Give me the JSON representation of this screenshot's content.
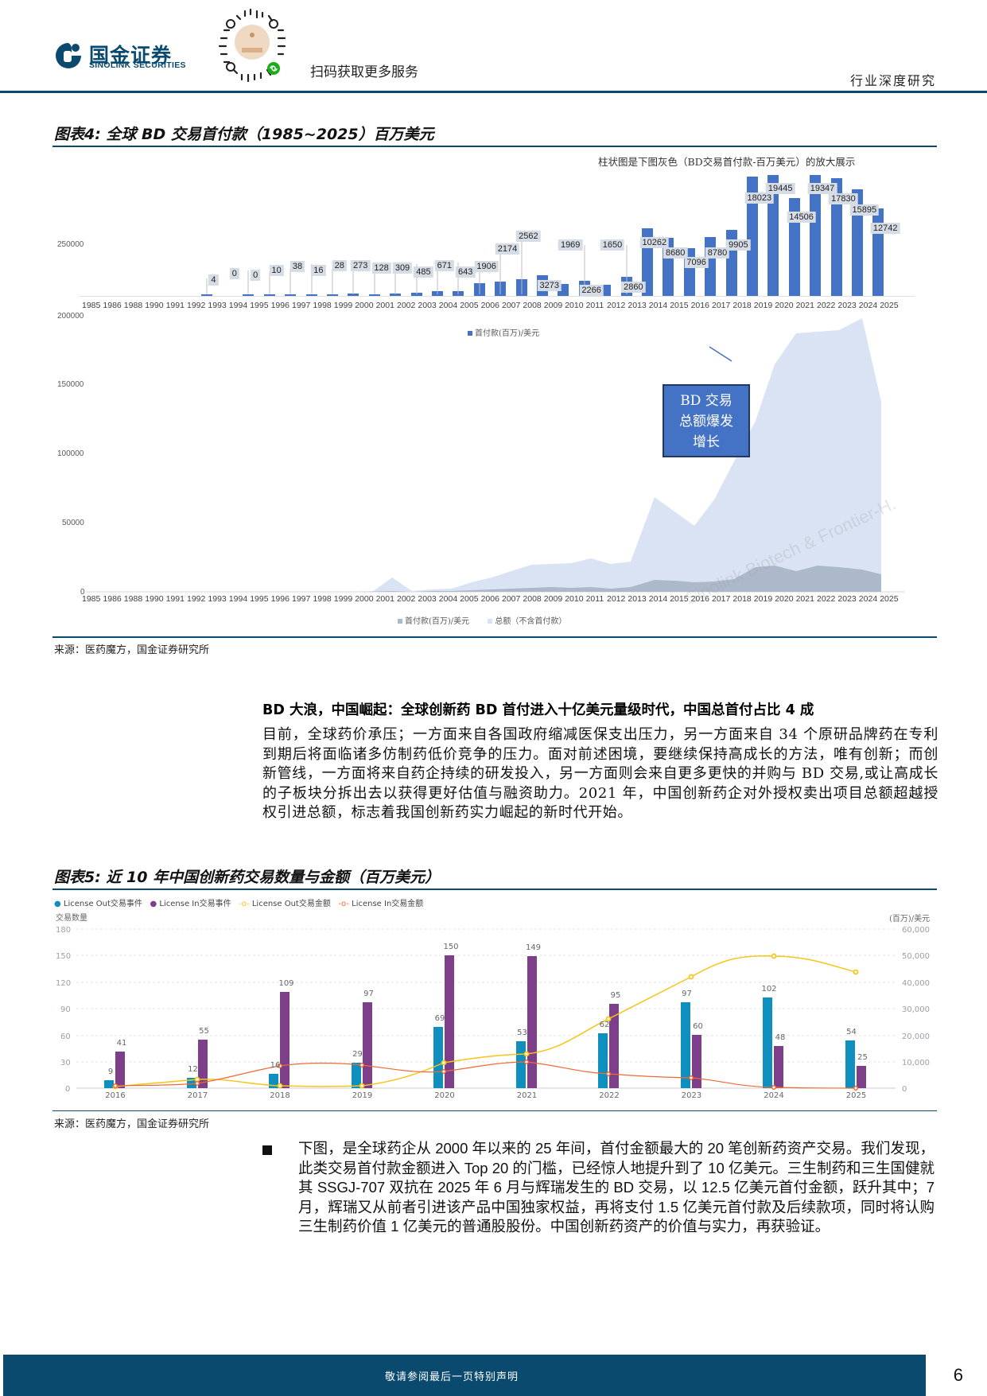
{
  "header": {
    "brand_cn": "国金证券",
    "brand_en": "SINOLINK SECURITIES",
    "qr_caption": "扫码获取更多服务",
    "report_type": "行业深度研究"
  },
  "figure4": {
    "title": "图表4:  全球 BD 交易首付款（1985~2025）百万美元",
    "note": "柱状图是下图灰色（BD交易首付款-百万美元）的放大展示",
    "top_legend": "首付款(百万)/美元",
    "bottom_legend": [
      "首付款(百万)/美元",
      "总额（不含首付款）"
    ],
    "annotation": [
      "BD 交易",
      "总额爆发",
      "增长"
    ],
    "watermark": "Sinolink Biotech & Frontier-H.",
    "source": "来源：医药魔方，国金证券研究所"
  },
  "section": {
    "heading": "BD 大浪，中国崛起：全球创新药 BD 首付进入十亿美元量级时代，中国总首付占比 4 成",
    "paragraph": "目前，全球药价承压；一方面来自各国政府缩减医保支出压力，另一方面来自 34 个原研品牌药在专利到期后将面临诸多仿制药低价竞争的压力。面对前述困境，要继续保持高成长的方法，唯有创新；而创新管线，一方面将来自药企持续的研发投入，另一方面则会来自更多更快的并购与 BD 交易,或让高成长的子板块分拆出去以获得更好估值与融资助力。2021 年，中国创新药企对外授权卖出项目总额超越授权引进总额，标志着我国创新药实力崛起的新时代开始。"
  },
  "figure5": {
    "title": "图表5:  近 10 年中国创新药交易数量与金额（百万美元）",
    "legend": [
      "License Out交易事件",
      "License In交易事件",
      "License Out交易金额",
      "License In交易金额"
    ],
    "left_axis_title": "交易数量",
    "right_axis_title": "(百万)/美元",
    "source": "来源：医药魔方，国金证券研究所"
  },
  "bullet": {
    "text": "下图，是全球药企从 2000 年以来的 25 年间，首付金额最大的 20 笔创新药资产交易。我们发现，此类交易首付款金额进入 Top 20 的门槛，已经惊人地提升到了 10 亿美元。三生制药和三生国健就其 SSGJ-707 双抗在 2025 年 6 月与辉瑞发生的 BD 交易，以 12.5 亿美元首付金额，跃升其中；7 月，辉瑞又从前者引进该产品中国独家权益，再将支付 1.5 亿美元首付款及后续款项，同时将认购三生制药价值 1 亿美元的普通股股份。中国创新药资产的价值与实力，再获验证。"
  },
  "footer": {
    "disclaimer": "敬请参阅最后一页特别声明",
    "page_number": "6"
  },
  "chart_data": [
    {
      "type": "bar",
      "title": "全球 BD 交易首付款（1985~2025）百万美元 — 柱状放大图",
      "categories": [
        "1985",
        "1986",
        "1988",
        "1990",
        "1991",
        "1992",
        "1993",
        "1994",
        "1995",
        "1996",
        "1997",
        "1998",
        "1999",
        "2000",
        "2001",
        "2002",
        "2003",
        "2004",
        "2005",
        "2006",
        "2007",
        "2008",
        "2009",
        "2010",
        "2011",
        "2012",
        "2013",
        "2014",
        "2015",
        "2016",
        "2017",
        "2018",
        "2019",
        "2020",
        "2021",
        "2022",
        "2023",
        "2024",
        "2025"
      ],
      "series": [
        {
          "name": "首付款(百万)/美元",
          "values": [
            null,
            null,
            null,
            null,
            null,
            null,
            4,
            0,
            0,
            10,
            38,
            16,
            28,
            273,
            128,
            309,
            485,
            671,
            643,
            1906,
            2174,
            2562,
            3273,
            1969,
            2266,
            1650,
            2860,
            10262,
            8680,
            7096,
            8780,
            9905,
            18023,
            19445,
            14506,
            19347,
            17830,
            15895,
            12742
          ]
        }
      ],
      "ytick_visible": [
        "250000"
      ],
      "legend": "首付款(百万)/美元",
      "color": "#4472c4"
    },
    {
      "type": "area",
      "title": "全球 BD 交易首付款与总额（1985~2025）",
      "categories": [
        "1985",
        "1986",
        "1988",
        "1990",
        "1991",
        "1992",
        "1993",
        "1994",
        "1995",
        "1996",
        "1997",
        "1998",
        "1999",
        "2000",
        "2001",
        "2002",
        "2003",
        "2004",
        "2005",
        "2006",
        "2007",
        "2008",
        "2009",
        "2010",
        "2011",
        "2012",
        "2013",
        "2014",
        "2015",
        "2016",
        "2017",
        "2018",
        "2019",
        "2020",
        "2021",
        "2022",
        "2023",
        "2024",
        "2025"
      ],
      "series": [
        {
          "name": "首付款(百万)/美元",
          "values": [
            0,
            0,
            0,
            0,
            0,
            0,
            4,
            0,
            0,
            10,
            38,
            16,
            28,
            273,
            128,
            309,
            485,
            671,
            643,
            1906,
            2174,
            2562,
            3273,
            1969,
            2266,
            1650,
            2860,
            10262,
            8680,
            7096,
            8780,
            9905,
            18023,
            19445,
            14506,
            19347,
            17830,
            15895,
            12742
          ],
          "color": "#acb9ca"
        },
        {
          "name": "总额（不含首付款）",
          "values": [
            0,
            0,
            0,
            0,
            0,
            0,
            0,
            0,
            0,
            0,
            0,
            0,
            0,
            11000,
            1000,
            2000,
            3000,
            7000,
            10000,
            15000,
            22000,
            21500,
            21000,
            21500,
            24000,
            20500,
            22000,
            68000,
            60000,
            48000,
            65000,
            92000,
            120000,
            164000,
            184000,
            185000,
            186000,
            195000,
            135000
          ],
          "color": "#dae3f3"
        }
      ],
      "ylim": [
        0,
        200000
      ],
      "yticks": [
        0,
        50000,
        100000,
        150000,
        200000
      ],
      "annotation": "BD 交易总额爆发增长"
    },
    {
      "type": "bar",
      "title": "近 10 年中国创新药交易数量与金额（百万美元）",
      "categories": [
        "2016",
        "2017",
        "2018",
        "2019",
        "2020",
        "2021",
        "2022",
        "2023",
        "2024",
        "2025"
      ],
      "series": [
        {
          "name": "License Out交易事件",
          "axis": "left",
          "values": [
            9,
            12,
            16,
            29,
            69,
            53,
            62,
            97,
            102,
            54
          ],
          "color": "#0e8fbd"
        },
        {
          "name": "License In交易事件",
          "axis": "left",
          "values": [
            41,
            55,
            109,
            97,
            150,
            149,
            95,
            60,
            48,
            25
          ],
          "color": "#7e3f8a"
        },
        {
          "name": "License Out交易金额",
          "axis": "right",
          "type": "line",
          "values": [
            500,
            3500,
            1000,
            1000,
            9500,
            13000,
            27000,
            42000,
            52000,
            46000
          ],
          "color": "#f5c518"
        },
        {
          "name": "License In交易金额",
          "axis": "right",
          "type": "line",
          "values": [
            1000,
            2000,
            7000,
            11000,
            8500,
            13000,
            5500,
            3500,
            500,
            0
          ],
          "color": "#ed6a37"
        }
      ],
      "ylabel": "交易数量",
      "ylim": [
        0,
        180
      ],
      "yticks": [
        0,
        30,
        60,
        90,
        120,
        150,
        180
      ],
      "y2label": "(百万)/美元",
      "y2lim": [
        0,
        60000
      ],
      "y2ticks": [
        "0",
        "10,000",
        "20,000",
        "30,000",
        "40,000",
        "50,000",
        "60,000"
      ]
    }
  ]
}
